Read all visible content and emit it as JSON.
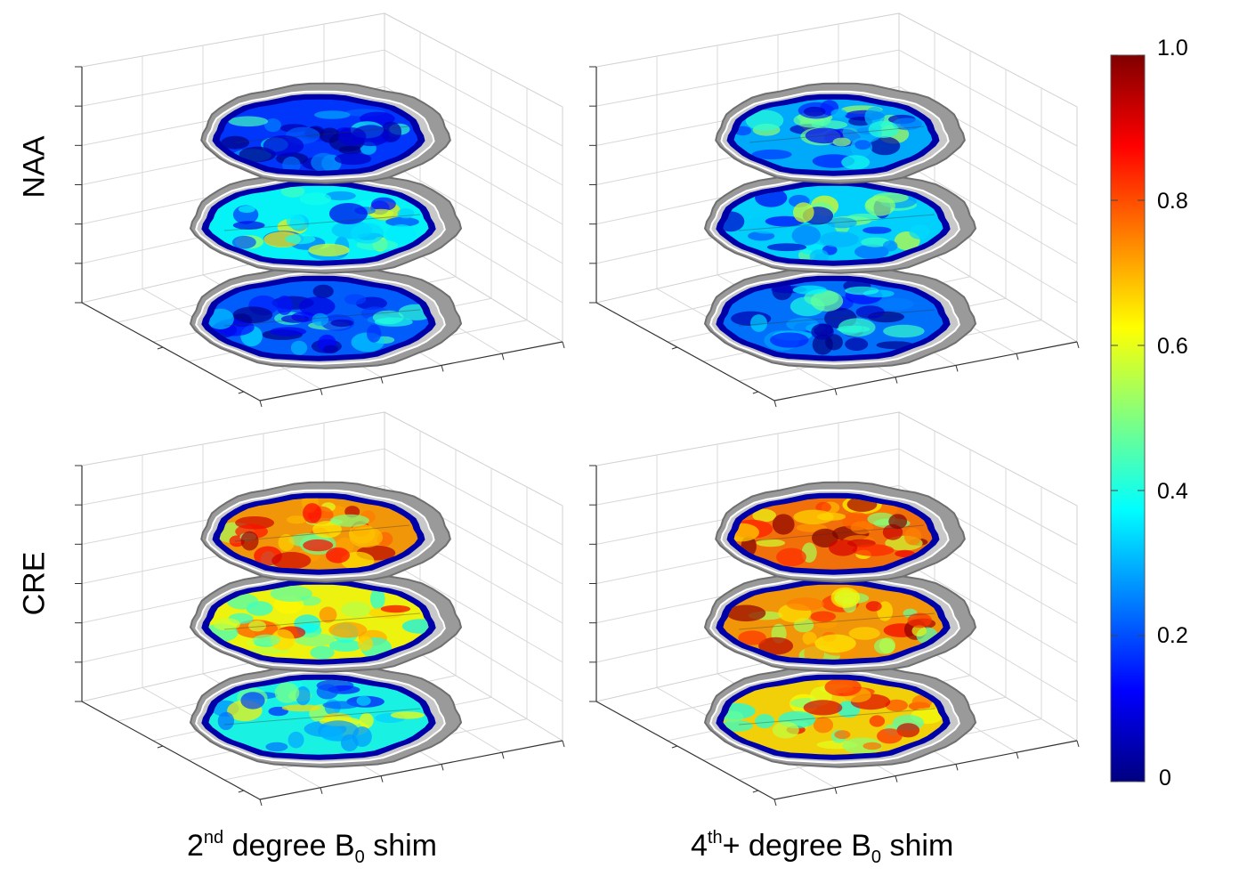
{
  "row_labels": {
    "top": "NAA",
    "bottom": "CRE"
  },
  "column_labels": {
    "left": {
      "pre": "2",
      "sup": "nd",
      "mid": " degree B",
      "sub": "0",
      "post": " shim"
    },
    "right": {
      "pre": "4",
      "sup": "th",
      "mid": "+ degree B",
      "sub": "0",
      "post": " shim"
    }
  },
  "colorbar": {
    "colormap": "jet",
    "min": 0,
    "max": 1,
    "tick_labels": [
      "1.0",
      "0.8",
      "0.6",
      "0.4",
      "0.2",
      "0"
    ],
    "colors": [
      "#000080",
      "#0000ff",
      "#0080ff",
      "#00ffff",
      "#80ff80",
      "#ffff00",
      "#ff8000",
      "#ff0000",
      "#800000"
    ]
  },
  "panels": [
    {
      "metabolite": "NAA",
      "shim": "2nd degree",
      "slice_levels": [
        0.18,
        0.38,
        0.22
      ]
    },
    {
      "metabolite": "NAA",
      "shim": "4th+ degree",
      "slice_levels": [
        0.3,
        0.34,
        0.24
      ]
    },
    {
      "metabolite": "CRE",
      "shim": "2nd degree",
      "slice_levels": [
        0.72,
        0.62,
        0.4
      ]
    },
    {
      "metabolite": "CRE",
      "shim": "4th+ degree",
      "slice_levels": [
        0.76,
        0.72,
        0.66
      ]
    }
  ]
}
